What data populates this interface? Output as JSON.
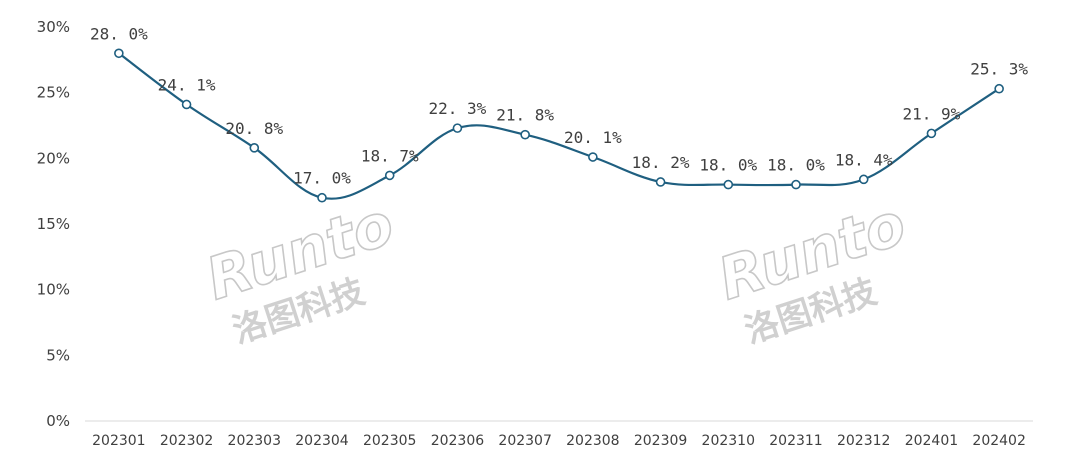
{
  "chart_data": {
    "type": "line",
    "categories": [
      "202301",
      "202302",
      "202303",
      "202304",
      "202305",
      "202306",
      "202307",
      "202308",
      "202309",
      "202310",
      "202311",
      "202312",
      "202401",
      "202402"
    ],
    "series": [
      {
        "values": [
          28.0,
          24.1,
          20.8,
          17.0,
          18.7,
          22.3,
          21.8,
          20.1,
          18.2,
          18.0,
          18.0,
          18.4,
          21.9,
          25.3
        ],
        "labels": [
          "28. 0%",
          "24. 1%",
          "20. 8%",
          "17. 0%",
          "18. 7%",
          "22. 3%",
          "21. 8%",
          "20. 1%",
          "18. 2%",
          "18. 0%",
          "18. 0%",
          "18. 4%",
          "21. 9%",
          "25. 3%"
        ]
      }
    ],
    "yticks": [
      "0%",
      "5%",
      "10%",
      "15%",
      "20%",
      "25%",
      "30%"
    ],
    "ylim": [
      0,
      30
    ],
    "grid": false,
    "legend": "none",
    "line_color": "#1f5f80",
    "marker_fill": "#ffffff"
  },
  "watermark": {
    "brand": "Runto",
    "chinese": "洛图科技"
  }
}
